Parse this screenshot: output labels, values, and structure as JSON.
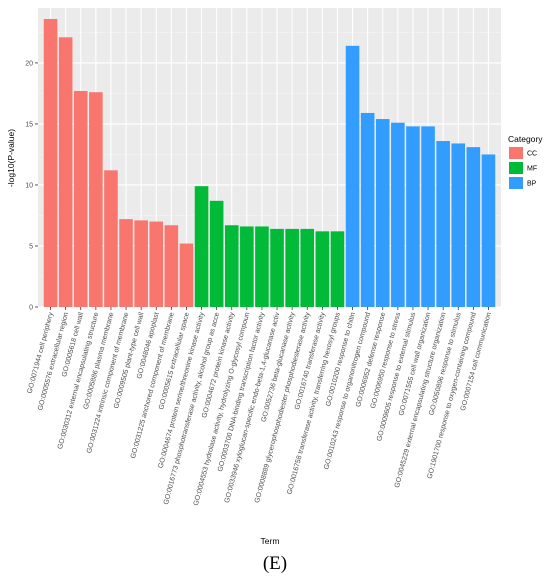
{
  "chart_data": {
    "type": "bar",
    "xlabel": "Term",
    "ylabel": "-log10(P-value)",
    "ylim": [
      0,
      24.5
    ],
    "yticks": [
      0,
      5,
      10,
      15,
      20
    ],
    "grid": true,
    "legend_position": "right",
    "legend": {
      "title": "Category",
      "items": [
        {
          "name": "CC",
          "color": "#F8766D"
        },
        {
          "name": "MF",
          "color": "#00BA38"
        },
        {
          "name": "BP",
          "color": "#339CFF"
        }
      ]
    },
    "colors": {
      "CC": "#F8766D",
      "MF": "#00BA38",
      "BP": "#339CFF"
    },
    "categories": [
      "GO:0071944 cell periphery",
      "GO:0005576 extracellular region",
      "GO:0005618 cell wall",
      "GO:0030312 external encapsulating structure",
      "GO:0005886 plasma membrane",
      "GO:0031224 intrinsic component of membrane",
      "GO:0009505 plant-type cell wall",
      "GO:0048046 apoplast",
      "GO:0031225 anchored component of membrane",
      "GO:0005615 extracellular space",
      "GO:0004674 protein serine/threonine kinase activity",
      "GO:0016773 phosphotransferase activity, alcohol group as acce",
      "GO:0004672 protein kinase activity",
      "GO:0004553 hydrolase activity, hydrolyzing O-glycosyl compoun",
      "GO:0003700 DNA-binding transcription factor activity",
      "GO:0033946 xyloglucan-specific endo-beta-1,4-glucanase activ",
      "GO:0052736 beta-glucanase activity",
      "GO:0008889 glycerophosphodiester phosphodiesterase activity",
      "GO:0016740 transferase activity",
      "GO:0016758 transferase activity, transferring hexosyl groups",
      "GO:0010200 response to chitin",
      "GO:0010243 response to organonitrogen compound",
      "GO:0006952 defense response",
      "GO:0006950 response to stress",
      "GO:0009605 response to external stimulus",
      "GO:0071555 cell wall organization",
      "GO:0045229 external encapsulating structure organization",
      "GO:0050896 response to stimulus",
      "GO:1901700 response to oxygen-containing compound",
      "GO:0007154 cell communication"
    ],
    "category_group": [
      "CC",
      "CC",
      "CC",
      "CC",
      "CC",
      "CC",
      "CC",
      "CC",
      "CC",
      "CC",
      "MF",
      "MF",
      "MF",
      "MF",
      "MF",
      "MF",
      "MF",
      "MF",
      "MF",
      "MF",
      "BP",
      "BP",
      "BP",
      "BP",
      "BP",
      "BP",
      "BP",
      "BP",
      "BP",
      "BP"
    ],
    "values": [
      23.6,
      22.1,
      17.7,
      17.6,
      11.2,
      7.2,
      7.1,
      7.0,
      6.7,
      5.2,
      9.9,
      8.7,
      6.7,
      6.6,
      6.6,
      6.4,
      6.4,
      6.4,
      6.2,
      6.2,
      21.4,
      15.9,
      15.4,
      15.1,
      14.8,
      14.8,
      13.6,
      13.4,
      13.1,
      12.5
    ]
  },
  "caption": "(E)"
}
